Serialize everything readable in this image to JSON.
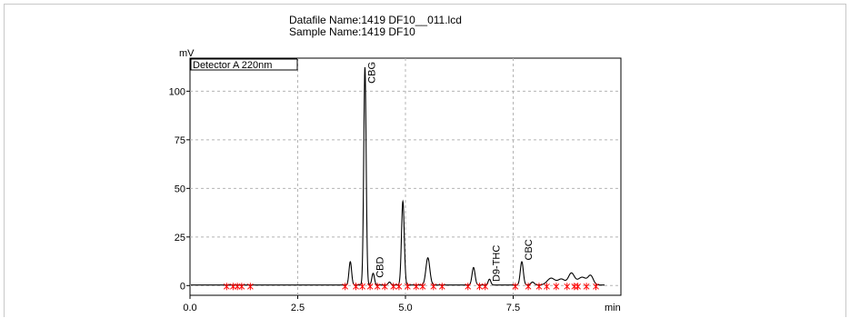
{
  "header": {
    "datafile": "Datafile Name:1419 DF10__011.lcd",
    "sample": "Sample Name:1419 DF10"
  },
  "chart_data": {
    "type": "line",
    "detector_label": "Detector A 220nm",
    "xlabel": "min",
    "ylabel": "mV",
    "xlim": [
      0,
      10.0
    ],
    "ylim": [
      -5,
      117
    ],
    "xticks": [
      "0.0",
      "2.5",
      "5.0",
      "7.5"
    ],
    "yticks": [
      "0",
      "25",
      "50",
      "75",
      "100"
    ],
    "xtick_values": [
      0,
      2.5,
      5.0,
      7.5
    ],
    "ytick_values": [
      0,
      25,
      50,
      75,
      100
    ],
    "grid": true,
    "colors": {
      "trace": "#000000",
      "marker": "#ff0000",
      "grid": "#b4b4b4"
    },
    "baseline_level": 0.3,
    "peaks": [
      {
        "rt": 3.72,
        "h": 12,
        "w": 0.03
      },
      {
        "rt": 4.06,
        "h": 112,
        "w": 0.028
      },
      {
        "rt": 4.25,
        "h": 6,
        "w": 0.03
      },
      {
        "rt": 4.63,
        "h": 1.5,
        "w": 0.03
      },
      {
        "rt": 4.94,
        "h": 43,
        "w": 0.032
      },
      {
        "rt": 5.52,
        "h": 14,
        "w": 0.045
      },
      {
        "rt": 6.58,
        "h": 9,
        "w": 0.035
      },
      {
        "rt": 6.95,
        "h": 3,
        "w": 0.03
      },
      {
        "rt": 7.7,
        "h": 12,
        "w": 0.035
      },
      {
        "rt": 7.95,
        "h": 1.5,
        "w": 0.04
      },
      {
        "rt": 8.38,
        "h": 3.5,
        "w": 0.09
      },
      {
        "rt": 8.62,
        "h": 3,
        "w": 0.08
      },
      {
        "rt": 8.85,
        "h": 6,
        "w": 0.07
      },
      {
        "rt": 9.1,
        "h": 4,
        "w": 0.1
      },
      {
        "rt": 9.3,
        "h": 4.5,
        "w": 0.06
      }
    ],
    "peak_labels": [
      {
        "name": "CBG",
        "rt": 4.06,
        "y": 104
      },
      {
        "name": "CBD",
        "rt": 4.25,
        "y": 4
      },
      {
        "name": "D9-THC",
        "rt": 6.95,
        "y": 2
      },
      {
        "name": "CBC",
        "rt": 7.7,
        "y": 13
      }
    ],
    "integration_marks": [
      0.85,
      1.0,
      1.1,
      1.2,
      1.4,
      3.6,
      3.85,
      4.0,
      4.18,
      4.35,
      4.52,
      4.72,
      4.85,
      5.05,
      5.25,
      5.4,
      5.65,
      5.85,
      6.45,
      6.72,
      6.85,
      7.55,
      7.85,
      8.1,
      8.28,
      8.5,
      8.75,
      8.92,
      9.0,
      9.2,
      9.42
    ]
  }
}
